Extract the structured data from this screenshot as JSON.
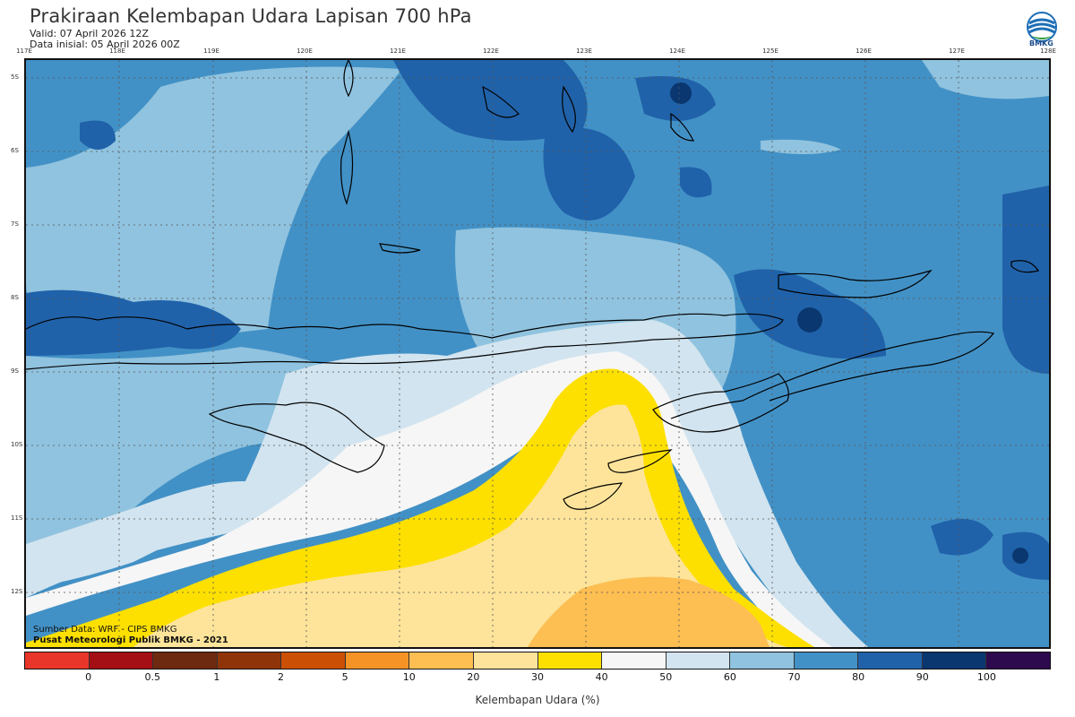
{
  "header": {
    "title": "Prakiraan Kelembapan Udara Lapisan 700 hPa",
    "valid": "Valid: 07 April 2026 12Z",
    "initial": "Data inisial: 05 April 2026 00Z",
    "logo_text": "BMKG"
  },
  "map": {
    "lon_labels": [
      "117E",
      "118E",
      "119E",
      "120E",
      "121E",
      "122E",
      "123E",
      "124E",
      "125E",
      "126E",
      "127E",
      "128E"
    ],
    "lat_labels": [
      "5S",
      "6S",
      "7S",
      "8S",
      "9S",
      "10S",
      "11S",
      "12S"
    ],
    "credit_source": "Sumber Data: WRF - CIPS BMKG",
    "credit_center": "Pusat Meteorologi Publik BMKG - 2021"
  },
  "colorbar": {
    "colors": [
      "#e8362a",
      "#a30f14",
      "#6e2a10",
      "#8f3408",
      "#cc4f06",
      "#f69326",
      "#fdbe52",
      "#fde49a",
      "#fde000",
      "#f6f6f6",
      "#d2e4ef",
      "#90c3df",
      "#4291c6",
      "#2062a9",
      "#0a3770",
      "#2d0a4e"
    ],
    "ticks": [
      "0",
      "0.5",
      "1",
      "2",
      "5",
      "10",
      "20",
      "30",
      "40",
      "50",
      "60",
      "70",
      "80",
      "90",
      "100"
    ],
    "title": "Kelembapan Udara (%)"
  },
  "colors": {
    "humid_high": "#2062a9",
    "humid_mid": "#4291c6",
    "humid_low": "#90c3df",
    "dry": "#fde000"
  }
}
